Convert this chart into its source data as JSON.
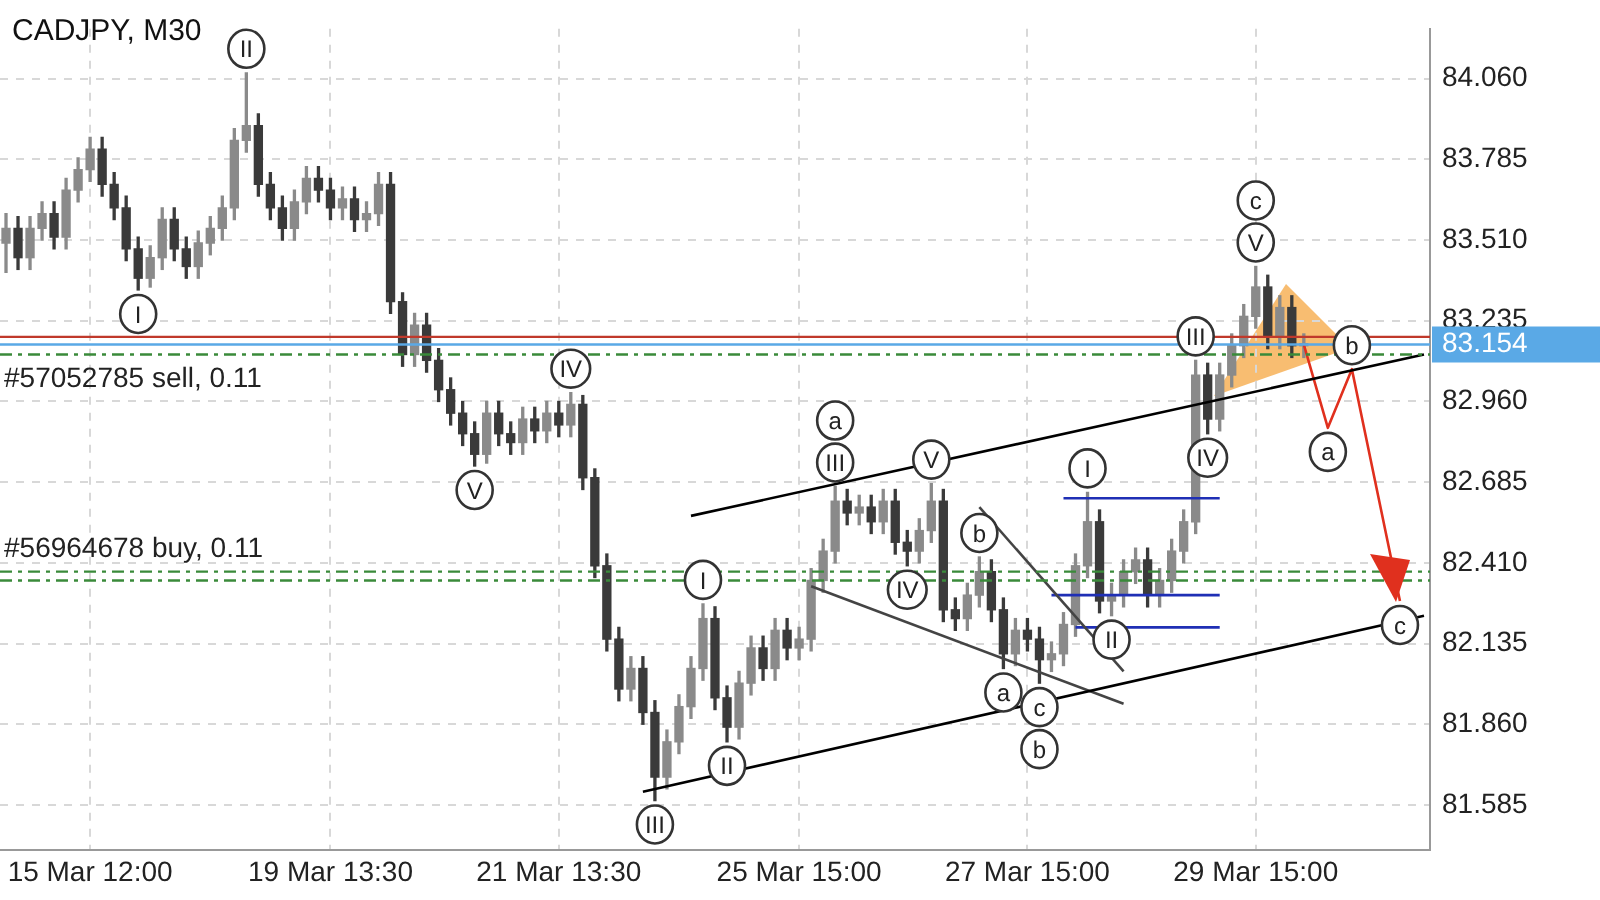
{
  "chart_data": {
    "type": "candlestick",
    "title": "CADJPY, M30",
    "grid": true,
    "colors": [
      "#8a8a8a",
      "#3a3a3a",
      "#8a8a8a",
      "#8a8a8a",
      "#3a3a3a",
      "#8a8a8a",
      "#8a8a8a",
      "#8a8a8a",
      "#3a3a3a",
      "#3a3a3a",
      "#3a3a3a",
      "#3a3a3a",
      "#8a8a8a",
      "#8a8a8a",
      "#3a3a3a",
      "#3a3a3a",
      "#8a8a8a",
      "#8a8a8a",
      "#8a8a8a",
      "#8a8a8a",
      "#8a8a8a",
      "#3a3a3a",
      "#3a3a3a",
      "#3a3a3a",
      "#8a8a8a",
      "#8a8a8a",
      "#3a3a3a",
      "#3a3a3a",
      "#8a8a8a",
      "#3a3a3a",
      "#8a8a8a",
      "#8a8a8a",
      "#3a3a3a",
      "#3a3a3a",
      "#8a8a8a",
      "#3a3a3a",
      "#3a3a3a",
      "#3a3a3a",
      "#3a3a3a",
      "#3a3a3a",
      "#8a8a8a",
      "#3a3a3a",
      "#3a3a3a",
      "#8a8a8a",
      "#3a3a3a",
      "#8a8a8a",
      "#3a3a3a",
      "#8a8a8a",
      "#3a3a3a",
      "#3a3a3a",
      "#3a3a3a",
      "#3a3a3a",
      "#8a8a8a",
      "#3a3a3a",
      "#3a3a3a",
      "#8a8a8a",
      "#8a8a8a",
      "#8a8a8a",
      "#8a8a8a",
      "#3a3a3a",
      "#3a3a3a",
      "#8a8a8a",
      "#8a8a8a",
      "#3a3a3a",
      "#8a8a8a",
      "#3a3a3a",
      "#8a8a8a",
      "#8a8a8a",
      "#8a8a8a",
      "#8a8a8a",
      "#3a3a3a",
      "#8a8a8a",
      "#3a3a3a",
      "#8a8a8a",
      "#3a3a3a",
      "#3a3a3a",
      "#8a8a8a",
      "#8a8a8a",
      "#3a3a3a",
      "#3a3a3a",
      "#8a8a8a",
      "#8a8a8a",
      "#3a3a3a",
      "#3a3a3a",
      "#8a8a8a",
      "#3a3a3a",
      "#3a3a3a",
      "#8a8a8a",
      "#8a8a8a",
      "#8a8a8a",
      "#8a8a8a",
      "#3a3a3a",
      "#8a8a8a",
      "#8a8a8a",
      "#8a8a8a",
      "#3a3a3a",
      "#8a8a8a",
      "#8a8a8a",
      "#8a8a8a",
      "#8a8a8a",
      "#3a3a3a",
      "#8a8a8a",
      "#8a8a8a",
      "#8a8a8a",
      "#8a8a8a",
      "#3a3a3a",
      "#8a8a8a",
      "#3a3a3a",
      "#8a8a8a",
      null,
      null,
      null,
      null,
      null,
      null,
      null,
      null,
      null,
      null
    ],
    "categories": [
      null,
      null,
      null,
      null,
      null,
      null,
      null,
      "15 Mar 12:00",
      null,
      null,
      null,
      null,
      null,
      null,
      null,
      null,
      null,
      null,
      null,
      null,
      null,
      null,
      null,
      null,
      null,
      null,
      null,
      "19 Mar 13:30",
      null,
      null,
      null,
      null,
      null,
      null,
      null,
      null,
      null,
      null,
      null,
      null,
      null,
      null,
      null,
      null,
      null,
      null,
      "21 Mar 13:30",
      null,
      null,
      null,
      null,
      null,
      null,
      null,
      null,
      null,
      null,
      null,
      null,
      null,
      null,
      null,
      null,
      null,
      null,
      null,
      "25 Mar 15:00",
      null,
      null,
      null,
      null,
      null,
      null,
      null,
      null,
      null,
      null,
      null,
      null,
      null,
      null,
      null,
      null,
      null,
      null,
      "27 Mar 15:00",
      null,
      null,
      null,
      null,
      null,
      null,
      null,
      null,
      null,
      null,
      null,
      null,
      null,
      null,
      null,
      null,
      null,
      null,
      "29 Mar 15:00",
      null,
      null,
      null,
      null,
      null,
      null,
      null,
      null,
      null,
      null,
      null,
      null,
      null,
      null
    ],
    "ohlc": [
      [
        83.5,
        83.6,
        83.4,
        83.55
      ],
      [
        83.55,
        83.59,
        83.41,
        83.45
      ],
      [
        83.45,
        83.59,
        83.41,
        83.55
      ],
      [
        83.55,
        83.64,
        83.51,
        83.6
      ],
      [
        83.6,
        83.64,
        83.48,
        83.52
      ],
      [
        83.52,
        83.72,
        83.48,
        83.68
      ],
      [
        83.68,
        83.79,
        83.64,
        83.75
      ],
      [
        83.75,
        83.86,
        83.71,
        83.82
      ],
      [
        83.82,
        83.86,
        83.66,
        83.7
      ],
      [
        83.7,
        83.74,
        83.58,
        83.62
      ],
      [
        83.62,
        83.66,
        83.44,
        83.48
      ],
      [
        83.48,
        83.52,
        83.34,
        83.38
      ],
      [
        83.38,
        83.49,
        83.35,
        83.45
      ],
      [
        83.45,
        83.62,
        83.41,
        83.58
      ],
      [
        83.58,
        83.62,
        83.44,
        83.48
      ],
      [
        83.48,
        83.52,
        83.38,
        83.42
      ],
      [
        83.42,
        83.54,
        83.38,
        83.5
      ],
      [
        83.5,
        83.59,
        83.46,
        83.55
      ],
      [
        83.55,
        83.66,
        83.51,
        83.62
      ],
      [
        83.62,
        83.89,
        83.58,
        83.85
      ],
      [
        83.85,
        84.08,
        83.81,
        83.9
      ],
      [
        83.9,
        83.94,
        83.66,
        83.7
      ],
      [
        83.7,
        83.74,
        83.58,
        83.62
      ],
      [
        83.62,
        83.66,
        83.51,
        83.55
      ],
      [
        83.55,
        83.68,
        83.51,
        83.64
      ],
      [
        83.64,
        83.76,
        83.6,
        83.72
      ],
      [
        83.72,
        83.76,
        83.64,
        83.68
      ],
      [
        83.68,
        83.72,
        83.58,
        83.62
      ],
      [
        83.62,
        83.69,
        83.58,
        83.65
      ],
      [
        83.65,
        83.69,
        83.54,
        83.58
      ],
      [
        83.58,
        83.64,
        83.54,
        83.6
      ],
      [
        83.6,
        83.74,
        83.56,
        83.7
      ],
      [
        83.7,
        83.74,
        83.26,
        83.3
      ],
      [
        83.3,
        83.33,
        83.08,
        83.12
      ],
      [
        83.12,
        83.26,
        83.08,
        83.22
      ],
      [
        83.22,
        83.26,
        83.06,
        83.1
      ],
      [
        83.1,
        83.14,
        82.96,
        83.0
      ],
      [
        83.0,
        83.04,
        82.88,
        82.92
      ],
      [
        82.92,
        82.96,
        82.81,
        82.85
      ],
      [
        82.85,
        82.89,
        82.74,
        82.78
      ],
      [
        82.78,
        82.96,
        82.75,
        82.92
      ],
      [
        82.92,
        82.96,
        82.81,
        82.85
      ],
      [
        82.85,
        82.89,
        82.78,
        82.82
      ],
      [
        82.82,
        82.94,
        82.78,
        82.9
      ],
      [
        82.9,
        82.94,
        82.82,
        82.86
      ],
      [
        82.86,
        82.96,
        82.82,
        82.92
      ],
      [
        82.92,
        82.96,
        82.84,
        82.88
      ],
      [
        82.88,
        82.99,
        82.84,
        82.95
      ],
      [
        82.95,
        82.98,
        82.66,
        82.7
      ],
      [
        82.7,
        82.73,
        82.36,
        82.4
      ],
      [
        82.4,
        82.44,
        82.11,
        82.15
      ],
      [
        82.15,
        82.19,
        81.94,
        81.98
      ],
      [
        81.98,
        82.09,
        81.94,
        82.05
      ],
      [
        82.05,
        82.09,
        81.86,
        81.9
      ],
      [
        81.9,
        81.94,
        81.6,
        81.68
      ],
      [
        81.68,
        81.84,
        81.64,
        81.8
      ],
      [
        81.8,
        81.96,
        81.76,
        81.92
      ],
      [
        81.92,
        82.09,
        81.88,
        82.05
      ],
      [
        82.05,
        82.27,
        82.01,
        82.22
      ],
      [
        82.22,
        82.26,
        81.91,
        81.95
      ],
      [
        81.95,
        81.99,
        81.8,
        81.85
      ],
      [
        81.85,
        82.04,
        81.81,
        82.0
      ],
      [
        82.0,
        82.16,
        81.96,
        82.12
      ],
      [
        82.12,
        82.16,
        82.01,
        82.05
      ],
      [
        82.05,
        82.22,
        82.01,
        82.18
      ],
      [
        82.18,
        82.22,
        82.08,
        82.12
      ],
      [
        82.12,
        82.19,
        82.08,
        82.15
      ],
      [
        82.15,
        82.39,
        82.11,
        82.35
      ],
      [
        82.35,
        82.49,
        82.31,
        82.45
      ],
      [
        82.45,
        82.67,
        82.41,
        82.62
      ],
      [
        82.62,
        82.66,
        82.54,
        82.58
      ],
      [
        82.58,
        82.64,
        82.54,
        82.6
      ],
      [
        82.6,
        82.64,
        82.51,
        82.55
      ],
      [
        82.55,
        82.66,
        82.51,
        82.62
      ],
      [
        82.62,
        82.66,
        82.44,
        82.48
      ],
      [
        82.48,
        82.52,
        82.4,
        82.45
      ],
      [
        82.45,
        82.56,
        82.41,
        82.52
      ],
      [
        82.52,
        82.68,
        82.48,
        82.62
      ],
      [
        82.62,
        82.66,
        82.21,
        82.25
      ],
      [
        82.25,
        82.29,
        82.18,
        82.22
      ],
      [
        82.22,
        82.34,
        82.18,
        82.3
      ],
      [
        82.3,
        82.43,
        82.26,
        82.38
      ],
      [
        82.38,
        82.42,
        82.21,
        82.25
      ],
      [
        82.25,
        82.29,
        82.05,
        82.1
      ],
      [
        82.1,
        82.22,
        82.06,
        82.18
      ],
      [
        82.18,
        82.22,
        82.11,
        82.15
      ],
      [
        82.15,
        82.19,
        82.0,
        82.08
      ],
      [
        82.08,
        82.14,
        82.04,
        82.1
      ],
      [
        82.1,
        82.24,
        82.06,
        82.2
      ],
      [
        82.2,
        82.44,
        82.16,
        82.4
      ],
      [
        82.4,
        82.65,
        82.36,
        82.55
      ],
      [
        82.55,
        82.59,
        82.24,
        82.28
      ],
      [
        82.28,
        82.34,
        82.23,
        82.3
      ],
      [
        82.3,
        82.42,
        82.26,
        82.38
      ],
      [
        82.38,
        82.46,
        82.34,
        82.42
      ],
      [
        82.42,
        82.46,
        82.26,
        82.3
      ],
      [
        82.3,
        82.39,
        82.26,
        82.35
      ],
      [
        82.35,
        82.49,
        82.31,
        82.45
      ],
      [
        82.45,
        82.59,
        82.41,
        82.55
      ],
      [
        82.55,
        83.1,
        82.51,
        83.05
      ],
      [
        83.05,
        83.09,
        82.85,
        82.9
      ],
      [
        82.9,
        83.09,
        82.86,
        83.05
      ],
      [
        83.05,
        83.19,
        83.01,
        83.15
      ],
      [
        83.15,
        83.29,
        83.11,
        83.25
      ],
      [
        83.25,
        83.42,
        83.21,
        83.35
      ],
      [
        83.35,
        83.39,
        83.14,
        83.18
      ],
      [
        83.18,
        83.32,
        83.14,
        83.28
      ],
      [
        83.28,
        83.32,
        83.11,
        83.15
      ],
      [
        83.15,
        83.19,
        83.11,
        83.154
      ],
      null,
      null,
      null,
      null,
      null,
      null,
      null,
      null,
      null,
      null
    ],
    "series": [
      {
        "type": "line",
        "color": "#000000",
        "values": [
          null,
          null,
          null,
          null,
          null,
          null,
          null,
          null,
          null,
          null,
          null,
          null,
          null,
          null,
          null,
          null,
          null,
          null,
          null,
          null,
          null,
          null,
          null,
          null,
          null,
          null,
          null,
          null,
          null,
          null,
          null,
          null,
          null,
          null,
          null,
          null,
          null,
          null,
          null,
          null,
          null,
          null,
          null,
          null,
          null,
          null,
          null,
          null,
          null,
          null,
          null,
          null,
          null,
          null,
          null,
          null,
          null,
          82.57,
          null,
          null,
          null,
          null,
          null,
          null,
          null,
          null,
          null,
          null,
          null,
          null,
          null,
          null,
          null,
          null,
          null,
          null,
          null,
          null,
          null,
          null,
          null,
          null,
          null,
          null,
          null,
          null,
          null,
          null,
          null,
          null,
          null,
          null,
          null,
          null,
          null,
          null,
          null,
          null,
          null,
          null,
          null,
          null,
          null,
          null,
          null,
          null,
          null,
          null,
          null,
          null,
          null,
          null,
          null,
          null,
          null,
          null,
          null,
          null,
          83.12
        ]
      },
      {
        "type": "line",
        "color": "#000000",
        "values": [
          null,
          null,
          null,
          null,
          null,
          null,
          null,
          null,
          null,
          null,
          null,
          null,
          null,
          null,
          null,
          null,
          null,
          null,
          null,
          null,
          null,
          null,
          null,
          null,
          null,
          null,
          null,
          null,
          null,
          null,
          null,
          null,
          null,
          null,
          null,
          null,
          null,
          null,
          null,
          null,
          null,
          null,
          null,
          null,
          null,
          null,
          null,
          null,
          null,
          null,
          null,
          null,
          null,
          81.63,
          null,
          null,
          null,
          null,
          null,
          null,
          null,
          null,
          null,
          null,
          null,
          null,
          null,
          null,
          null,
          null,
          null,
          null,
          null,
          null,
          null,
          null,
          null,
          null,
          null,
          null,
          null,
          null,
          null,
          null,
          null,
          null,
          null,
          null,
          null,
          null,
          null,
          null,
          null,
          null,
          null,
          null,
          null,
          null,
          null,
          null,
          null,
          null,
          null,
          null,
          null,
          null,
          null,
          null,
          null,
          null,
          null,
          null,
          null,
          null,
          null,
          null,
          null,
          null,
          82.23
        ]
      },
      {
        "type": "line",
        "color": "#444444",
        "values": [
          null,
          null,
          null,
          null,
          null,
          null,
          null,
          null,
          null,
          null,
          null,
          null,
          null,
          null,
          null,
          null,
          null,
          null,
          null,
          null,
          null,
          null,
          null,
          null,
          null,
          null,
          null,
          null,
          null,
          null,
          null,
          null,
          null,
          null,
          null,
          null,
          null,
          null,
          null,
          null,
          null,
          null,
          null,
          null,
          null,
          null,
          null,
          null,
          null,
          null,
          null,
          null,
          null,
          null,
          null,
          null,
          null,
          null,
          null,
          null,
          null,
          null,
          null,
          null,
          null,
          null,
          null,
          82.33,
          null,
          null,
          null,
          null,
          null,
          null,
          null,
          null,
          null,
          null,
          null,
          null,
          null,
          null,
          null,
          null,
          null,
          null,
          null,
          null,
          null,
          null,
          null,
          null,
          null,
          81.93,
          null,
          null,
          null,
          null,
          null,
          null,
          null,
          null,
          null,
          null,
          null,
          null,
          null,
          null,
          null,
          null,
          null,
          null,
          null,
          null,
          null,
          null,
          null,
          null,
          null
        ]
      },
      {
        "type": "line",
        "color": "#444444",
        "values": [
          null,
          null,
          null,
          null,
          null,
          null,
          null,
          null,
          null,
          null,
          null,
          null,
          null,
          null,
          null,
          null,
          null,
          null,
          null,
          null,
          null,
          null,
          null,
          null,
          null,
          null,
          null,
          null,
          null,
          null,
          null,
          null,
          null,
          null,
          null,
          null,
          null,
          null,
          null,
          null,
          null,
          null,
          null,
          null,
          null,
          null,
          null,
          null,
          null,
          null,
          null,
          null,
          null,
          null,
          null,
          null,
          null,
          null,
          null,
          null,
          null,
          null,
          null,
          null,
          null,
          null,
          null,
          null,
          null,
          null,
          null,
          null,
          null,
          null,
          null,
          null,
          null,
          null,
          null,
          null,
          null,
          82.6,
          null,
          null,
          null,
          null,
          null,
          null,
          null,
          null,
          null,
          null,
          null,
          82.04,
          null,
          null,
          null,
          null,
          null,
          null,
          null,
          null,
          null,
          null,
          null,
          null,
          null,
          null,
          null,
          null,
          null,
          null,
          null,
          null,
          null,
          null,
          null,
          null,
          null
        ]
      },
      {
        "type": "line",
        "color": "#1f2fb5",
        "values": [
          null,
          null,
          null,
          null,
          null,
          null,
          null,
          null,
          null,
          null,
          null,
          null,
          null,
          null,
          null,
          null,
          null,
          null,
          null,
          null,
          null,
          null,
          null,
          null,
          null,
          null,
          null,
          null,
          null,
          null,
          null,
          null,
          null,
          null,
          null,
          null,
          null,
          null,
          null,
          null,
          null,
          null,
          null,
          null,
          null,
          null,
          null,
          null,
          null,
          null,
          null,
          null,
          null,
          null,
          null,
          null,
          null,
          null,
          null,
          null,
          null,
          null,
          null,
          null,
          null,
          null,
          null,
          null,
          null,
          null,
          null,
          null,
          null,
          null,
          null,
          null,
          null,
          null,
          null,
          null,
          null,
          null,
          null,
          null,
          null,
          null,
          null,
          null,
          82.63,
          null,
          null,
          null,
          null,
          null,
          null,
          null,
          null,
          null,
          null,
          null,
          null,
          82.63,
          null,
          null,
          null,
          null,
          null,
          null,
          null,
          null,
          null,
          null,
          null,
          null,
          null,
          null,
          null,
          null,
          null
        ]
      },
      {
        "type": "line",
        "color": "#1f2fb5",
        "values": [
          null,
          null,
          null,
          null,
          null,
          null,
          null,
          null,
          null,
          null,
          null,
          null,
          null,
          null,
          null,
          null,
          null,
          null,
          null,
          null,
          null,
          null,
          null,
          null,
          null,
          null,
          null,
          null,
          null,
          null,
          null,
          null,
          null,
          null,
          null,
          null,
          null,
          null,
          null,
          null,
          null,
          null,
          null,
          null,
          null,
          null,
          null,
          null,
          null,
          null,
          null,
          null,
          null,
          null,
          null,
          null,
          null,
          null,
          null,
          null,
          null,
          null,
          null,
          null,
          null,
          null,
          null,
          null,
          null,
          null,
          null,
          null,
          null,
          null,
          null,
          null,
          null,
          null,
          null,
          null,
          null,
          null,
          null,
          null,
          null,
          null,
          null,
          82.3,
          null,
          null,
          null,
          null,
          null,
          null,
          null,
          null,
          null,
          null,
          null,
          null,
          null,
          82.3,
          null,
          null,
          null,
          null,
          null,
          null,
          null,
          null,
          null,
          null,
          null,
          null,
          null,
          null,
          null,
          null,
          null
        ]
      },
      {
        "type": "line",
        "color": "#1f2fb5",
        "values": [
          null,
          null,
          null,
          null,
          null,
          null,
          null,
          null,
          null,
          null,
          null,
          null,
          null,
          null,
          null,
          null,
          null,
          null,
          null,
          null,
          null,
          null,
          null,
          null,
          null,
          null,
          null,
          null,
          null,
          null,
          null,
          null,
          null,
          null,
          null,
          null,
          null,
          null,
          null,
          null,
          null,
          null,
          null,
          null,
          null,
          null,
          null,
          null,
          null,
          null,
          null,
          null,
          null,
          null,
          null,
          null,
          null,
          null,
          null,
          null,
          null,
          null,
          null,
          null,
          null,
          null,
          null,
          null,
          null,
          null,
          null,
          null,
          null,
          null,
          null,
          null,
          null,
          null,
          null,
          null,
          null,
          null,
          null,
          null,
          null,
          null,
          null,
          null,
          null,
          82.19,
          null,
          null,
          null,
          null,
          null,
          null,
          null,
          null,
          null,
          null,
          null,
          82.19,
          null,
          null,
          null,
          null,
          null,
          null,
          null,
          null,
          null,
          null,
          null,
          null,
          null,
          null,
          null,
          null,
          null
        ]
      },
      {
        "type": "line",
        "color": "#e0301e",
        "values": [
          null,
          null,
          null,
          null,
          null,
          null,
          null,
          null,
          null,
          null,
          null,
          null,
          null,
          null,
          null,
          null,
          null,
          null,
          null,
          null,
          null,
          null,
          null,
          null,
          null,
          null,
          null,
          null,
          null,
          null,
          null,
          null,
          null,
          null,
          null,
          null,
          null,
          null,
          null,
          null,
          null,
          null,
          null,
          null,
          null,
          null,
          null,
          null,
          null,
          null,
          null,
          null,
          null,
          null,
          null,
          null,
          null,
          null,
          null,
          null,
          null,
          null,
          null,
          null,
          null,
          null,
          null,
          null,
          null,
          null,
          null,
          null,
          null,
          null,
          null,
          null,
          null,
          null,
          null,
          null,
          null,
          null,
          null,
          null,
          null,
          null,
          null,
          null,
          null,
          null,
          null,
          null,
          null,
          null,
          null,
          null,
          null,
          null,
          null,
          null,
          null,
          null,
          null,
          null,
          null,
          null,
          null,
          null,
          83.154,
          null,
          82.87,
          null,
          83.07,
          null,
          null,
          null,
          82.28,
          null,
          null
        ]
      }
    ],
    "ylim": [
      81.43,
      84.23
    ],
    "yticks": [
      {
        "value": 81.585,
        "label": "81.585"
      },
      {
        "value": 81.86,
        "label": "81.860"
      },
      82.135,
      {
        "value": 82.41,
        "label": "82.410"
      },
      82.685,
      {
        "value": 82.96,
        "label": "82.960"
      },
      83.235,
      {
        "value": 83.51,
        "label": "83.510"
      },
      83.785,
      {
        "value": 84.06,
        "label": "84.060"
      }
    ],
    "ref_lines": [
      {
        "axis": "y",
        "value": 83.18,
        "label": "#57052785 sell, 0.11",
        "color": "#c0392b",
        "line_style": "solid"
      },
      {
        "axis": "y",
        "value": 83.154,
        "label": "83.154",
        "color": "#5aa9e6",
        "line_style": "solid"
      },
      {
        "axis": "y",
        "value": 83.12,
        "color": "#3a8a3a",
        "line_style": "dashed"
      },
      {
        "axis": "y",
        "value": 82.38,
        "label": "#56964678 buy, 0.11",
        "color": "#3a8a3a",
        "line_style": "dashed"
      },
      {
        "axis": "y",
        "value": 82.35,
        "color": "#3a8a3a",
        "line_style": "dashed"
      }
    ],
    "annotations": [
      {
        "text": "II",
        "y": 84.08
      },
      {
        "text": "I",
        "y": 83.34
      },
      {
        "text": "IV",
        "y": 82.99
      },
      {
        "text": "V",
        "y": 82.74
      },
      {
        "text": "III",
        "y": 81.6
      },
      {
        "text": "III",
        "y": 82.67
      },
      {
        "text": "a",
        "y": 82.67
      },
      {
        "text": "c",
        "y": 82.0
      },
      {
        "text": "b",
        "y": 82.0
      },
      {
        "text": "V",
        "y": 83.42
      },
      {
        "text": "c",
        "y": 83.42
      },
      {
        "text": "I",
        "y": 82.27
      },
      {
        "text": "II",
        "y": 81.8
      },
      {
        "text": "IV",
        "y": 82.4
      },
      {
        "text": "V",
        "y": 82.68
      },
      {
        "text": "I",
        "y": 82.65
      },
      {
        "text": "II",
        "y": 82.23
      },
      {
        "text": "III",
        "y": 83.1
      },
      {
        "text": "IV",
        "y": 82.85
      },
      {
        "text": "a",
        "y": 82.05
      },
      {
        "text": "b",
        "y": 82.43
      },
      {
        "text": "a",
        "y": 82.87
      },
      {
        "text": "b",
        "y": 83.07
      },
      {
        "text": "c",
        "y": 82.28
      }
    ]
  }
}
